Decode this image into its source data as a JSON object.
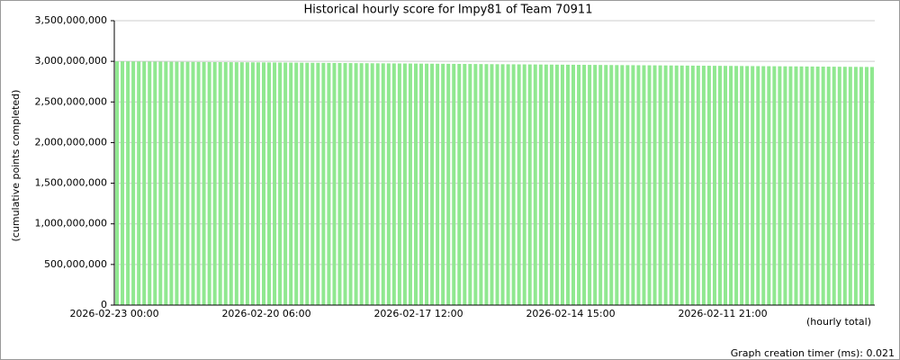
{
  "chart_data": {
    "type": "bar",
    "title": "Historical hourly score for Impy81 of Team 70911",
    "y_label": "(cumulative points completed)",
    "x_label": "(hourly total)",
    "footer": "Graph creation timer (ms): 0.021",
    "color": "#90e890",
    "grid": true,
    "ylim": [
      0,
      3500000000
    ],
    "yticks": [
      {
        "value": 0,
        "label": "0"
      },
      {
        "value": 500000000,
        "label": "500,000,000"
      },
      {
        "value": 1000000000,
        "label": "1,000,000,000"
      },
      {
        "value": 1500000000,
        "label": "1,500,000,000"
      },
      {
        "value": 2000000000,
        "label": "2,000,000,000"
      },
      {
        "value": 2500000000,
        "label": "2,500,000,000"
      },
      {
        "value": 3000000000,
        "label": "3,000,000,000"
      },
      {
        "value": 3500000000,
        "label": "3,500,000,000"
      }
    ],
    "categories": [
      "2026-02-23 00:00",
      null,
      null,
      null,
      null,
      null,
      null,
      null,
      null,
      null,
      null,
      null,
      null,
      null,
      null,
      null,
      null,
      null,
      null,
      null,
      null,
      null,
      null,
      null,
      null,
      null,
      null,
      null,
      "2026-02-20 06:00",
      null,
      null,
      null,
      null,
      null,
      null,
      null,
      null,
      null,
      null,
      null,
      null,
      null,
      null,
      null,
      null,
      null,
      null,
      null,
      null,
      null,
      null,
      null,
      null,
      null,
      null,
      null,
      "2026-02-17 12:00",
      null,
      null,
      null,
      null,
      null,
      null,
      null,
      null,
      null,
      null,
      null,
      null,
      null,
      null,
      null,
      null,
      null,
      null,
      null,
      null,
      null,
      null,
      null,
      null,
      null,
      null,
      null,
      "2026-02-14 15:00",
      null,
      null,
      null,
      null,
      null,
      null,
      null,
      null,
      null,
      null,
      null,
      null,
      null,
      null,
      null,
      null,
      null,
      null,
      null,
      null,
      null,
      null,
      null,
      null,
      null,
      null,
      null,
      "2026-02-11 21:00",
      null,
      null,
      null,
      null,
      null,
      null,
      null,
      null,
      null,
      null,
      null,
      null,
      null,
      null,
      null,
      null,
      null,
      null,
      null,
      null,
      null,
      null,
      null,
      null,
      null,
      null,
      null
    ],
    "values": [
      3000000000,
      2999500000,
      2999000000,
      2998500000,
      2998000000,
      2997500000,
      2997000000,
      2996500000,
      2996000000,
      2995500000,
      2995000000,
      2994500000,
      2994000000,
      2993500000,
      2993000000,
      2992500000,
      2992000000,
      2991500000,
      2991000000,
      2990500000,
      2990000000,
      2989500000,
      2989000000,
      2988500000,
      2988000000,
      2987500000,
      2987000000,
      2986500000,
      2986000000,
      2985500000,
      2985000000,
      2984500000,
      2984000000,
      2983500000,
      2983000000,
      2982500000,
      2982000000,
      2981500000,
      2981000000,
      2980500000,
      2980000000,
      2979500000,
      2979000000,
      2978500000,
      2978000000,
      2977500000,
      2977000000,
      2976500000,
      2976000000,
      2975500000,
      2975000000,
      2974500000,
      2974000000,
      2973500000,
      2973000000,
      2972500000,
      2972000000,
      2971500000,
      2971000000,
      2970500000,
      2970000000,
      2969500000,
      2969000000,
      2968500000,
      2968000000,
      2967500000,
      2967000000,
      2966500000,
      2966000000,
      2965500000,
      2965000000,
      2964500000,
      2964000000,
      2963500000,
      2963000000,
      2962500000,
      2962000000,
      2961500000,
      2961000000,
      2960500000,
      2960000000,
      2959500000,
      2959000000,
      2958500000,
      2958000000,
      2957500000,
      2957000000,
      2956500000,
      2956000000,
      2955500000,
      2955000000,
      2954500000,
      2954000000,
      2953500000,
      2953000000,
      2952500000,
      2952000000,
      2951500000,
      2951000000,
      2950500000,
      2950000000,
      2949500000,
      2949000000,
      2948500000,
      2948000000,
      2947500000,
      2947000000,
      2946500000,
      2946000000,
      2945500000,
      2945000000,
      2944500000,
      2944000000,
      2943500000,
      2943000000,
      2942500000,
      2942000000,
      2941500000,
      2941000000,
      2940500000,
      2940000000,
      2939500000,
      2939000000,
      2938500000,
      2938000000,
      2937500000,
      2937000000,
      2936500000,
      2936000000,
      2935500000,
      2935000000,
      2934500000,
      2934000000,
      2933500000,
      2933000000,
      2932500000,
      2932000000,
      2931500000,
      2931000000,
      2930500000
    ]
  }
}
